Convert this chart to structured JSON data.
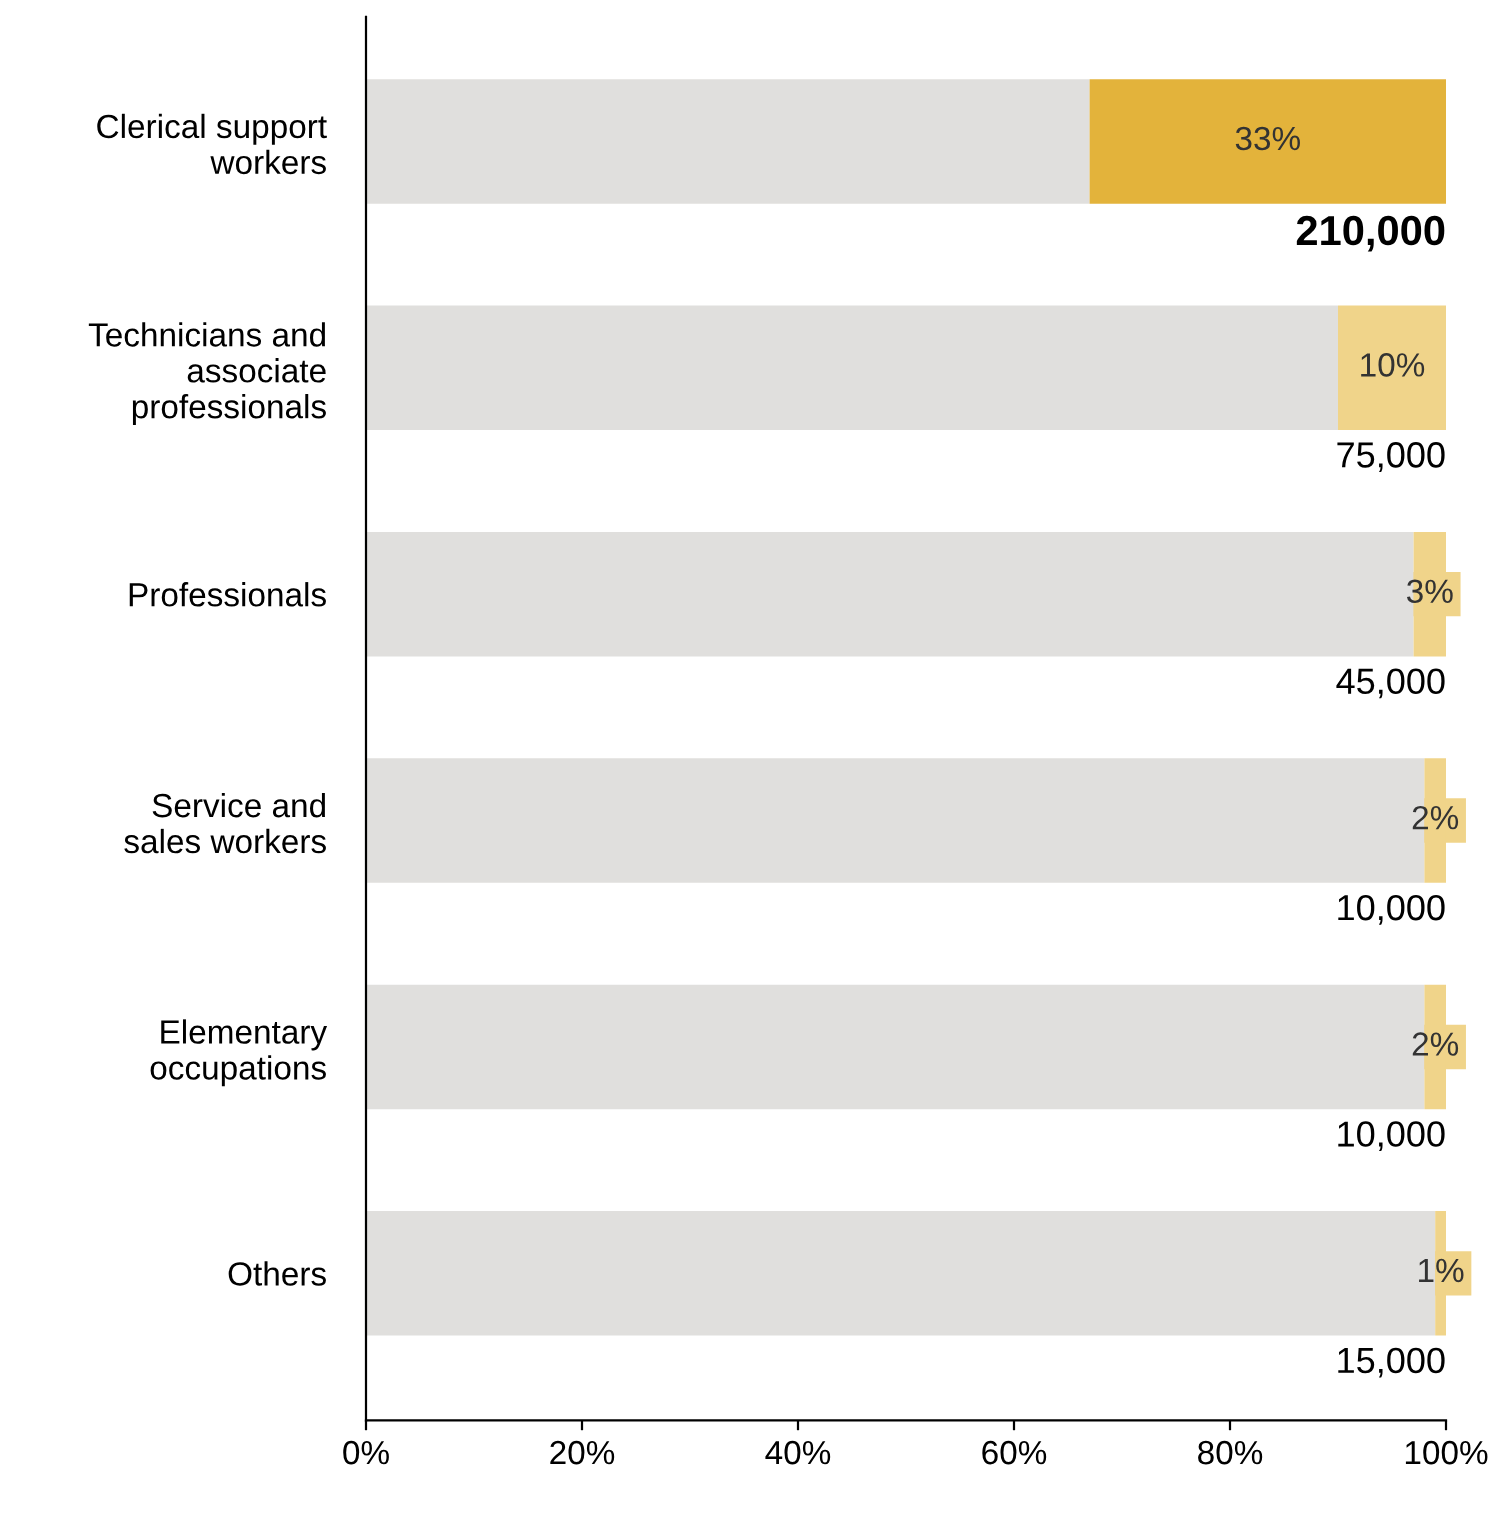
{
  "chart_data": {
    "type": "bar",
    "orientation": "horizontal",
    "stacked": true,
    "categories": [
      "Clerical support\nworkers",
      "Technicians and\nassociate\nprofessionals",
      "Professionals",
      "Service and\nsales workers",
      "Elementary\noccupations",
      "Others"
    ],
    "series": [
      {
        "color": "#e0dfdd",
        "values": [
          67,
          90,
          97,
          98,
          98,
          99
        ]
      },
      {
        "colors": [
          "#e3b33b",
          "#f0d48a",
          "#f0d48a",
          "#f0d48a",
          "#f0d48a",
          "#f0d48a"
        ],
        "values": [
          33,
          10,
          3,
          2,
          2,
          1
        ],
        "value_labels": [
          "33%",
          "10%",
          "3%",
          "2%",
          "2%",
          "1%"
        ]
      }
    ],
    "xlim": [
      0,
      100
    ],
    "xticks": [
      {
        "value": 0,
        "label": "0%"
      },
      {
        "value": 20,
        "label": "20%"
      },
      {
        "value": 40,
        "label": "40%"
      },
      {
        "value": 60,
        "label": "60%"
      },
      {
        "value": 80,
        "label": "80%"
      },
      {
        "value": 100,
        "label": "100%"
      }
    ],
    "grid": false,
    "legend": false,
    "annotations": [
      "210,000",
      "75,000",
      "45,000",
      "10,000",
      "10,000",
      "15,000"
    ]
  }
}
